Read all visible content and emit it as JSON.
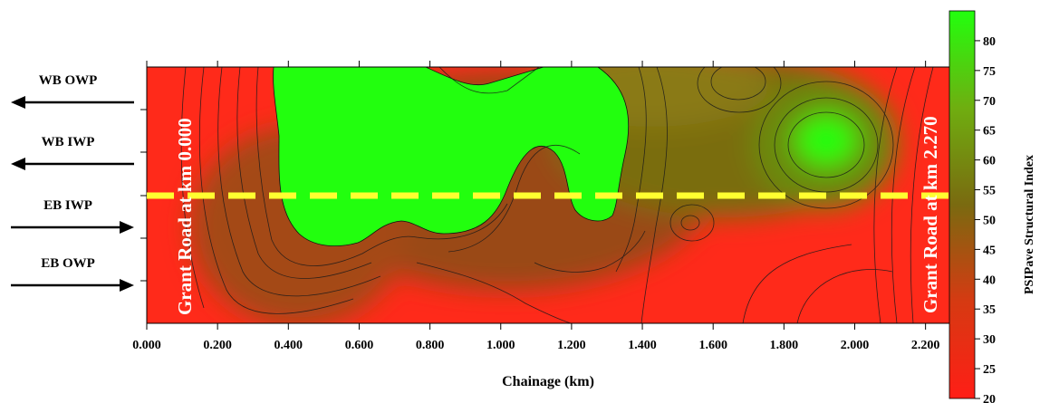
{
  "chart_data": {
    "type": "heatmap",
    "title": "",
    "xlabel": "Chainage (km)",
    "ylabel": "",
    "xlim": [
      0.0,
      2.27
    ],
    "x_ticks": [
      "0.000",
      "0.200",
      "0.400",
      "0.600",
      "0.800",
      "1.000",
      "1.200",
      "1.400",
      "1.600",
      "1.800",
      "2.000",
      "2.200"
    ],
    "lanes_top_to_bottom": [
      "WB OWP",
      "WB IWP",
      "EB IWP",
      "EB OWP"
    ],
    "lane_directions": [
      "left",
      "left",
      "right",
      "right"
    ],
    "left_annotation": "Grant Road at km 0.000",
    "right_annotation": "Grant Road at km 2.270",
    "colorbar": {
      "title": "PSIPave Structural Index",
      "min": 20,
      "max": 85,
      "ticks": [
        "80",
        "75",
        "70",
        "65",
        "60",
        "55",
        "50",
        "45",
        "40",
        "35",
        "30",
        "25",
        "20"
      ],
      "low_color": "#ff2a1a",
      "mid_color": "#7a6d10",
      "high_color": "#22ff0e"
    },
    "centerline_color": "#ffff30",
    "approx_field_samples": {
      "columns_km": [
        0.0,
        0.2,
        0.4,
        0.6,
        0.8,
        1.0,
        1.2,
        1.4,
        1.6,
        1.8,
        2.0,
        2.2
      ],
      "rows": [
        {
          "lane": "WB OWP",
          "values": [
            22,
            35,
            60,
            85,
            85,
            85,
            85,
            60,
            58,
            62,
            45,
            22
          ]
        },
        {
          "lane": "WB IWP",
          "values": [
            22,
            32,
            55,
            85,
            85,
            75,
            70,
            50,
            42,
            45,
            78,
            24
          ]
        },
        {
          "lane": "EB IWP",
          "values": [
            22,
            28,
            42,
            82,
            50,
            30,
            40,
            38,
            50,
            38,
            36,
            22
          ]
        },
        {
          "lane": "EB OWP",
          "values": [
            22,
            26,
            32,
            45,
            35,
            25,
            28,
            30,
            38,
            32,
            30,
            22
          ]
        }
      ]
    }
  },
  "colors": {
    "red": "#ff2a1a",
    "olive": "#7a6d10",
    "green": "#22ff0e"
  }
}
